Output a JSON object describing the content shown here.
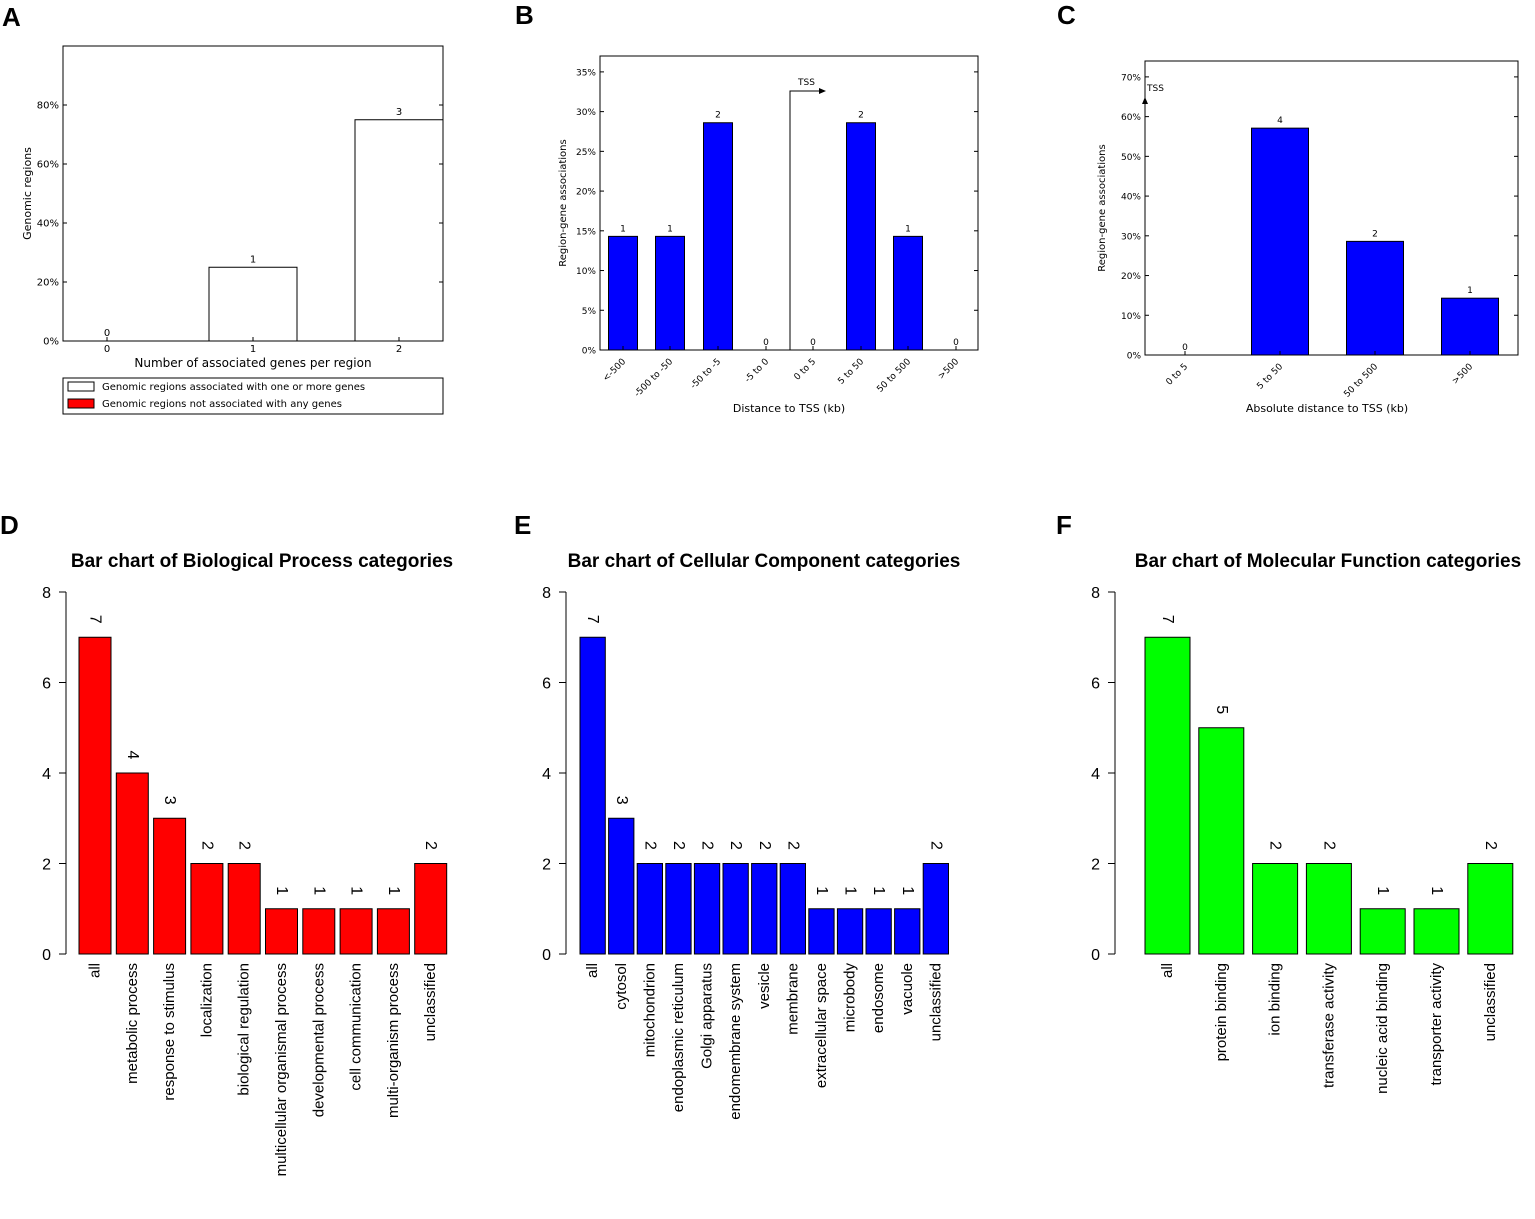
{
  "panel_labels": [
    "A",
    "B",
    "C",
    "D",
    "E",
    "F"
  ],
  "legend": {
    "associated": "Genomic regions associated with one or more genes",
    "not_associated": "Genomic regions not associated with any genes"
  },
  "annotations": {
    "tss_b": "TSS",
    "tss_c": "TSS"
  },
  "colors": {
    "blue": "#0000ff",
    "red": "#ff0000",
    "green": "#00ff00",
    "white": "#ffffff"
  },
  "chart_data": [
    {
      "panel": "A",
      "type": "bar",
      "title": "",
      "xlabel": "Number of associated genes per region",
      "ylabel": "Genomic regions",
      "categories": [
        "0",
        "1",
        "2"
      ],
      "values": [
        0,
        25,
        75
      ],
      "counts": [
        "0",
        "1",
        "3"
      ],
      "yticks": [
        "0%",
        "20%",
        "40%",
        "60%",
        "80%"
      ],
      "ylim": [
        0,
        100
      ]
    },
    {
      "panel": "B",
      "type": "bar",
      "title": "",
      "xlabel": "Distance to TSS (kb)",
      "ylabel": "Region-gene associations",
      "categories": [
        "<-500",
        "-500 to -50",
        "-50 to -5",
        "-5 to 0",
        "0 to 5",
        "5 to 50",
        "50 to 500",
        ">500"
      ],
      "values": [
        14.3,
        14.3,
        28.6,
        0,
        0,
        28.6,
        14.3,
        0
      ],
      "counts": [
        "1",
        "1",
        "2",
        "0",
        "0",
        "2",
        "1",
        "0"
      ],
      "yticks": [
        "0%",
        "5%",
        "10%",
        "15%",
        "20%",
        "25%",
        "30%",
        "35%"
      ],
      "ylim": [
        0,
        37
      ]
    },
    {
      "panel": "C",
      "type": "bar",
      "title": "",
      "xlabel": "Absolute distance to TSS (kb)",
      "ylabel": "Region-gene associations",
      "categories": [
        "0 to 5",
        "5 to 50",
        "50 to 500",
        ">500"
      ],
      "values": [
        0,
        57.1,
        28.6,
        14.3
      ],
      "counts": [
        "0",
        "4",
        "2",
        "1"
      ],
      "yticks": [
        "0%",
        "10%",
        "20%",
        "30%",
        "40%",
        "50%",
        "60%",
        "70%"
      ],
      "ylim": [
        0,
        74
      ]
    },
    {
      "panel": "D",
      "type": "bar",
      "title": "Bar chart of Biological Process categories",
      "xlabel": "",
      "ylabel": "",
      "categories": [
        "all",
        "metabolic process",
        "response to stimulus",
        "localization",
        "biological regulation",
        "multicellular organismal process",
        "developmental process",
        "cell communication",
        "multi-organism process",
        "unclassified"
      ],
      "values": [
        7,
        4,
        3,
        2,
        2,
        1,
        1,
        1,
        1,
        2
      ],
      "counts": [
        "7",
        "4",
        "3",
        "2",
        "2",
        "1",
        "1",
        "1",
        "1",
        "2"
      ],
      "yticks": [
        "0",
        "2",
        "4",
        "6",
        "8"
      ],
      "ylim": [
        0,
        8
      ]
    },
    {
      "panel": "E",
      "type": "bar",
      "title": "Bar chart of Cellular Component categories",
      "xlabel": "",
      "ylabel": "",
      "categories": [
        "all",
        "cytosol",
        "mitochondrion",
        "endoplasmic reticulum",
        "Golgi apparatus",
        "endomembrane system",
        "vesicle",
        "membrane",
        "extracellular space",
        "microbody",
        "endosome",
        "vacuole",
        "unclassified"
      ],
      "values": [
        7,
        3,
        2,
        2,
        2,
        2,
        2,
        2,
        1,
        1,
        1,
        1,
        2
      ],
      "counts": [
        "7",
        "3",
        "2",
        "2",
        "2",
        "2",
        "2",
        "2",
        "1",
        "1",
        "1",
        "1",
        "2"
      ],
      "yticks": [
        "0",
        "2",
        "4",
        "6",
        "8"
      ],
      "ylim": [
        0,
        8
      ]
    },
    {
      "panel": "F",
      "type": "bar",
      "title": "Bar chart of Molecular Function categories",
      "xlabel": "",
      "ylabel": "",
      "categories": [
        "all",
        "protein binding",
        "ion binding",
        "transferase activity",
        "nucleic acid binding",
        "transporter activity",
        "unclassified"
      ],
      "values": [
        7,
        5,
        2,
        2,
        1,
        1,
        2
      ],
      "counts": [
        "7",
        "5",
        "2",
        "2",
        "1",
        "1",
        "2"
      ],
      "yticks": [
        "0",
        "2",
        "4",
        "6",
        "8"
      ],
      "ylim": [
        0,
        8
      ]
    }
  ]
}
